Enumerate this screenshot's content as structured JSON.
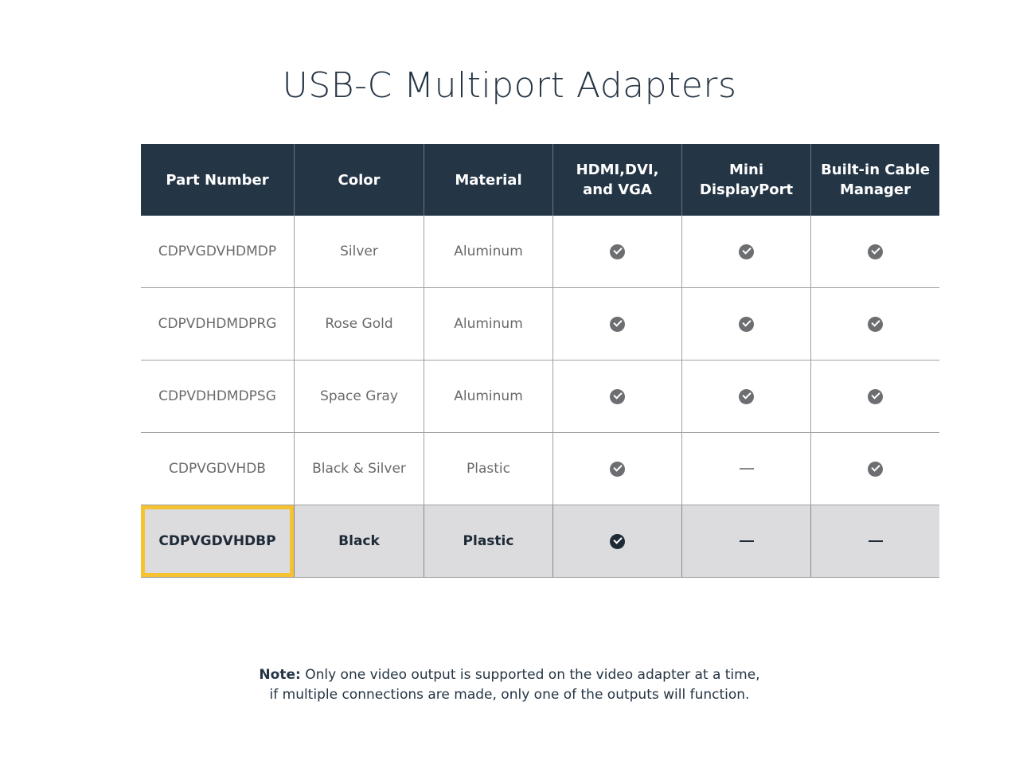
{
  "title": "USB-C Multiport Adapters",
  "table": {
    "headers": [
      "Part Number",
      "Color",
      "Material",
      "HDMI,DVI,\nand VGA",
      "Mini\nDisplayPort",
      "Built-in Cable\nManager"
    ],
    "rows": [
      {
        "part": "CDPVGDVHDMDP",
        "color": "Silver",
        "material": "Aluminum",
        "hdmi_dvi_vga": "check",
        "mini_displayport": "check",
        "cable_manager": "check",
        "highlighted": false
      },
      {
        "part": "CDPVDHDMDPRG",
        "color": "Rose Gold",
        "material": "Aluminum",
        "hdmi_dvi_vga": "check",
        "mini_displayport": "check",
        "cable_manager": "check",
        "highlighted": false
      },
      {
        "part": "CDPVDHDMDPSG",
        "color": "Space Gray",
        "material": "Aluminum",
        "hdmi_dvi_vga": "check",
        "mini_displayport": "check",
        "cable_manager": "check",
        "highlighted": false
      },
      {
        "part": "CDPVGDVHDB",
        "color": "Black & Silver",
        "material": "Plastic",
        "hdmi_dvi_vga": "check",
        "mini_displayport": "dash",
        "cable_manager": "check",
        "highlighted": false
      },
      {
        "part": "CDPVGDVHDBP",
        "color": "Black",
        "material": "Plastic",
        "hdmi_dvi_vga": "check",
        "mini_displayport": "dash",
        "cable_manager": "dash",
        "highlighted": true
      }
    ]
  },
  "note": {
    "label": "Note:",
    "line1": " Only one video output is supported on the video adapter at a time,",
    "line2": "if multiple connections are made, only one of the outputs will function."
  },
  "colors": {
    "header_bg": "#243545",
    "highlight_bg": "#dcdcde",
    "highlight_border": "#f5c232"
  }
}
